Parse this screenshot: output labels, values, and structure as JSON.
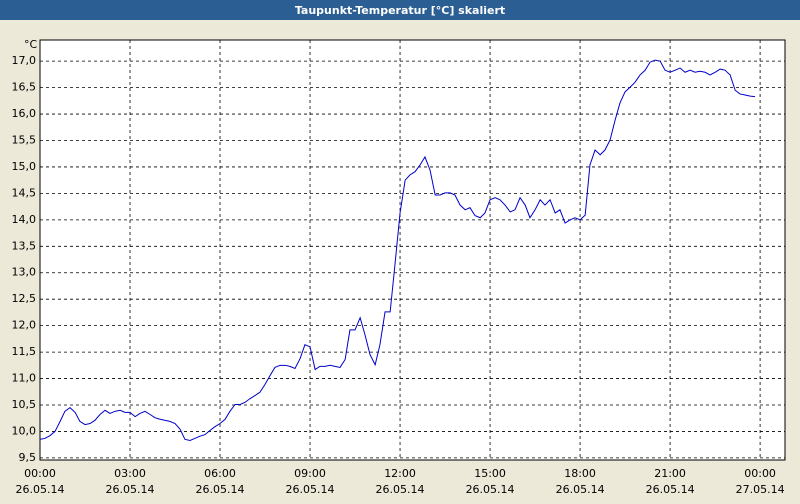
{
  "chart_data": {
    "type": "line",
    "title": "Taupunkt-Temperatur [°C] skaliert",
    "y_label": "°C",
    "x": [
      0,
      0.17,
      0.33,
      0.5,
      0.67,
      0.83,
      1,
      1.17,
      1.33,
      1.5,
      1.67,
      1.83,
      2,
      2.17,
      2.33,
      2.5,
      2.67,
      2.83,
      3,
      3.17,
      3.33,
      3.5,
      3.67,
      3.83,
      4,
      4.17,
      4.33,
      4.5,
      4.67,
      4.83,
      5,
      5.17,
      5.33,
      5.5,
      5.67,
      5.83,
      6,
      6.17,
      6.33,
      6.5,
      6.67,
      6.83,
      7,
      7.17,
      7.33,
      7.5,
      7.67,
      7.83,
      8,
      8.17,
      8.33,
      8.5,
      8.67,
      8.83,
      9,
      9.17,
      9.33,
      9.5,
      9.67,
      9.83,
      10,
      10.17,
      10.33,
      10.5,
      10.67,
      10.83,
      11,
      11.17,
      11.33,
      11.5,
      11.67,
      11.83,
      12,
      12.17,
      12.33,
      12.5,
      12.67,
      12.83,
      13,
      13.17,
      13.33,
      13.5,
      13.67,
      13.83,
      14,
      14.17,
      14.33,
      14.5,
      14.67,
      14.83,
      15,
      15.17,
      15.33,
      15.5,
      15.67,
      15.83,
      16,
      16.17,
      16.33,
      16.5,
      16.67,
      16.83,
      17,
      17.17,
      17.33,
      17.5,
      17.67,
      17.83,
      18,
      18.17,
      18.33,
      18.5,
      18.67,
      18.83,
      19,
      19.17,
      19.33,
      19.5,
      19.67,
      19.83,
      20,
      20.17,
      20.33,
      20.5,
      20.67,
      20.83,
      21,
      21.17,
      21.33,
      21.5,
      21.67,
      21.83,
      22,
      22.17,
      22.33,
      22.5,
      22.67,
      22.83,
      23,
      23.17,
      23.33,
      23.5,
      23.67,
      23.83
    ],
    "series": [
      {
        "name": "Taupunkt",
        "color": "#0000cc",
        "values": [
          9.85,
          9.87,
          9.92,
          10.0,
          10.19,
          10.38,
          10.45,
          10.36,
          10.19,
          10.13,
          10.15,
          10.21,
          10.32,
          10.4,
          10.34,
          10.38,
          10.4,
          10.36,
          10.36,
          10.28,
          10.34,
          10.38,
          10.32,
          10.26,
          10.23,
          10.21,
          10.19,
          10.15,
          10.04,
          9.85,
          9.83,
          9.87,
          9.91,
          9.94,
          10.02,
          10.09,
          10.15,
          10.23,
          10.38,
          10.51,
          10.51,
          10.55,
          10.62,
          10.68,
          10.74,
          10.89,
          11.06,
          11.21,
          11.25,
          11.25,
          11.23,
          11.19,
          11.38,
          11.64,
          11.6,
          11.17,
          11.23,
          11.23,
          11.25,
          11.23,
          11.21,
          11.36,
          11.92,
          11.92,
          12.15,
          11.83,
          11.45,
          11.26,
          11.64,
          12.26,
          12.26,
          13.15,
          14.13,
          14.75,
          14.85,
          14.91,
          15.04,
          15.19,
          14.94,
          14.47,
          14.47,
          14.51,
          14.51,
          14.47,
          14.28,
          14.19,
          14.23,
          14.08,
          14.04,
          14.13,
          14.38,
          14.42,
          14.38,
          14.28,
          14.15,
          14.19,
          14.42,
          14.28,
          14.04,
          14.19,
          14.38,
          14.28,
          14.38,
          14.13,
          14.19,
          13.94,
          14.0,
          14.04,
          14.0,
          14.09,
          15.04,
          15.32,
          15.23,
          15.32,
          15.51,
          15.89,
          16.21,
          16.42,
          16.51,
          16.6,
          16.74,
          16.83,
          16.98,
          17.02,
          17.0,
          16.83,
          16.79,
          16.83,
          16.87,
          16.79,
          16.83,
          16.79,
          16.81,
          16.79,
          16.74,
          16.79,
          16.85,
          16.83,
          16.74,
          16.45,
          16.38,
          16.36,
          16.34,
          16.33
        ]
      }
    ],
    "xlim": [
      0,
      24.83
    ],
    "ylim": [
      9.46,
      17.4
    ],
    "xticks": [
      {
        "value": 0,
        "label": "00:00",
        "date": "26.05.14"
      },
      {
        "value": 3,
        "label": "03:00",
        "date": "26.05.14"
      },
      {
        "value": 6,
        "label": "06:00",
        "date": "26.05.14"
      },
      {
        "value": 9,
        "label": "09:00",
        "date": "26.05.14"
      },
      {
        "value": 12,
        "label": "12:00",
        "date": "26.05.14"
      },
      {
        "value": 15,
        "label": "15:00",
        "date": "26.05.14"
      },
      {
        "value": 18,
        "label": "18:00",
        "date": "26.05.14"
      },
      {
        "value": 21,
        "label": "21:00",
        "date": "26.05.14"
      },
      {
        "value": 24,
        "label": "00:00",
        "date": "27.05.14"
      }
    ],
    "yticks": [
      {
        "value": 9.5,
        "label": "9,5"
      },
      {
        "value": 10,
        "label": "10,0"
      },
      {
        "value": 10.5,
        "label": "10,5"
      },
      {
        "value": 11,
        "label": "11,0"
      },
      {
        "value": 11.5,
        "label": "11,5"
      },
      {
        "value": 12,
        "label": "12,0"
      },
      {
        "value": 12.5,
        "label": "12,5"
      },
      {
        "value": 13,
        "label": "13,0"
      },
      {
        "value": 13.5,
        "label": "13,5"
      },
      {
        "value": 14,
        "label": "14,0"
      },
      {
        "value": 14.5,
        "label": "14,5"
      },
      {
        "value": 15,
        "label": "15,0"
      },
      {
        "value": 15.5,
        "label": "15,5"
      },
      {
        "value": 16,
        "label": "16,0"
      },
      {
        "value": 16.5,
        "label": "16,5"
      },
      {
        "value": 17,
        "label": "17,0"
      }
    ],
    "grid": true
  }
}
